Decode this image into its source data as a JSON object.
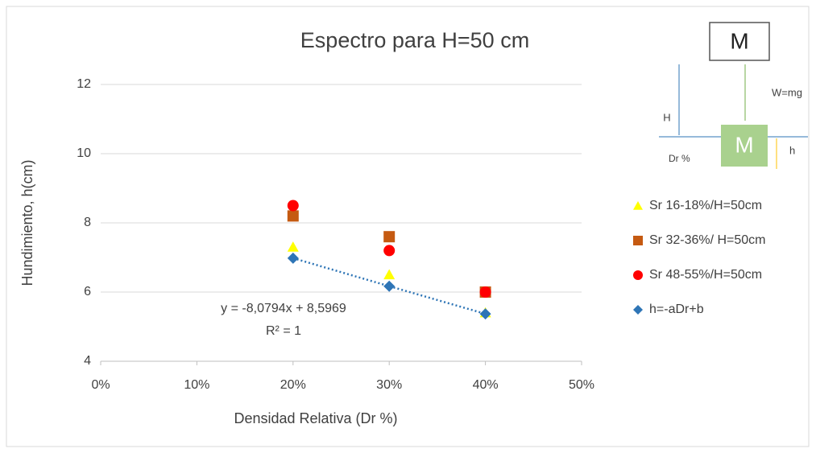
{
  "chart_data": {
    "type": "scatter",
    "title": "Espectro para H=50 cm",
    "x_label": "Densidad Relativa (Dr %)",
    "y_label": "Hundimiento, h(cm)",
    "xlim": [
      0,
      50
    ],
    "xticks": [
      {
        "value": 0,
        "label": "0%"
      },
      {
        "value": 10,
        "label": "10%"
      },
      {
        "value": 20,
        "label": "20%"
      },
      {
        "value": 30,
        "label": "30%"
      },
      {
        "value": 40,
        "label": "40%"
      },
      {
        "value": 50,
        "label": "50%"
      }
    ],
    "ylim": [
      4,
      12
    ],
    "yticks": [
      4,
      6,
      8,
      10,
      12
    ],
    "grid": true,
    "legend": "right",
    "series": [
      {
        "name": "Sr 16-18%/H=50cm",
        "color": "#ffff00",
        "marker": "triangle",
        "x": [
          20,
          30,
          40
        ],
        "values": [
          7.3,
          6.5,
          5.4
        ]
      },
      {
        "name": "Sr 32-36%/ H=50cm",
        "color": "#c55a11",
        "marker": "square",
        "x": [
          20,
          30,
          40
        ],
        "values": [
          8.2,
          7.6,
          6.0
        ]
      },
      {
        "name": "Sr 48-55%/H=50cm",
        "color": "#ff0000",
        "marker": "circle",
        "x": [
          20,
          30,
          40
        ],
        "values": [
          8.5,
          7.2,
          6.0
        ]
      },
      {
        "name": "h=-aDr+b",
        "color": "#2e75b6",
        "marker": "diamond",
        "trendline": true,
        "x": [
          20,
          30,
          40
        ],
        "values": [
          6.98,
          6.17,
          5.37
        ]
      }
    ],
    "annotations": [
      "y = -8,0794x + 8,5969",
      "R² = 1"
    ]
  },
  "diagram": {
    "top_mass": "M",
    "weight": "W=mg",
    "height": "H",
    "density": "Dr %",
    "bottom_mass": "M",
    "sink": "h"
  }
}
